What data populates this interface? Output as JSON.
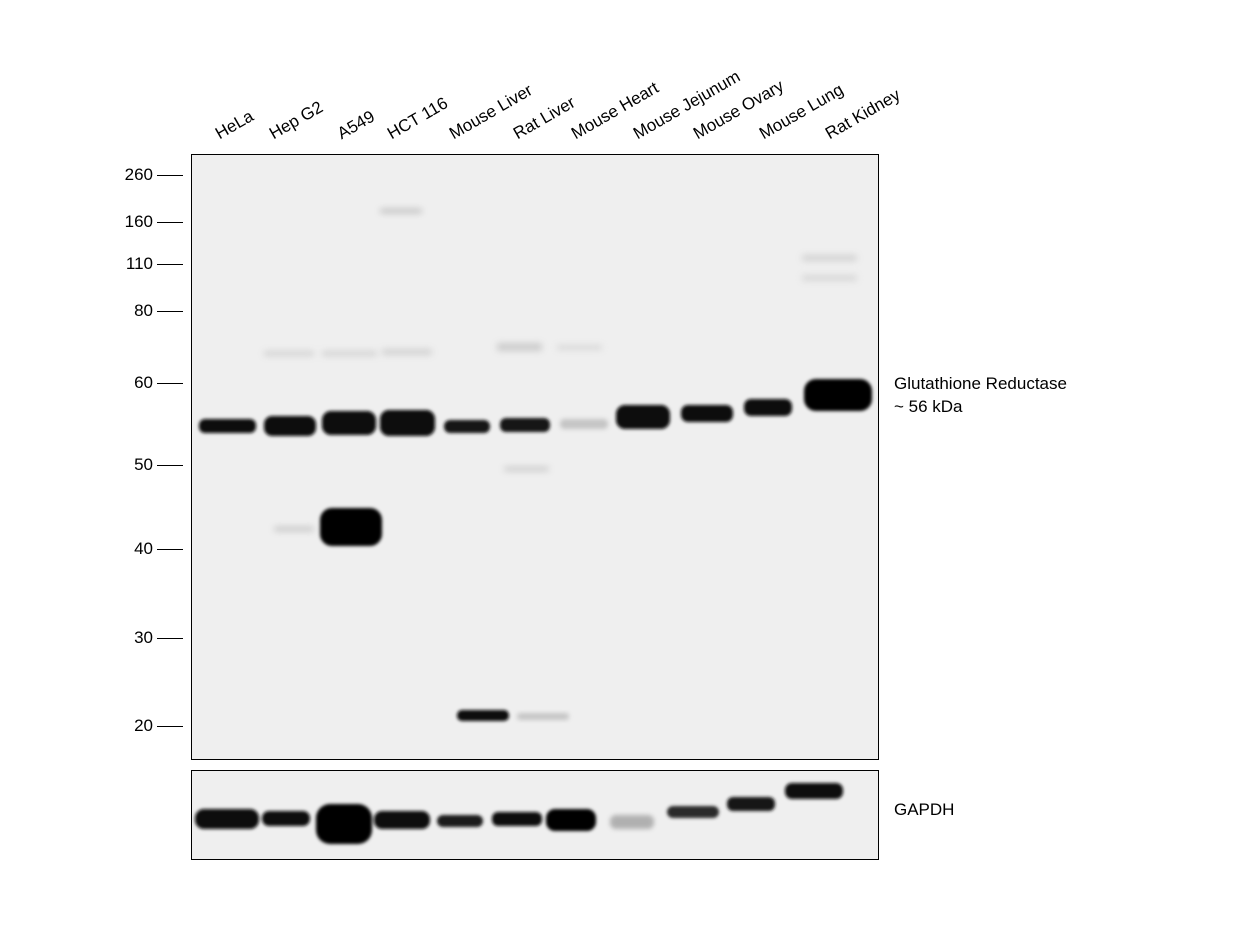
{
  "lanes": [
    "HeLa",
    "Hep G2",
    "A549",
    "HCT 116",
    "Mouse Liver",
    "Rat Liver",
    "Mouse Heart",
    "Mouse Jejunum",
    "Mouse Ovary",
    "Mouse Lung",
    "Rat Kidney"
  ],
  "mw_markers": [
    "260",
    "160",
    "110",
    "80",
    "60",
    "50",
    "40",
    "30",
    "20"
  ],
  "target": {
    "name": "Glutathione Reductase",
    "size": "~ 56 kDa"
  },
  "loading_control": "GAPDH"
}
